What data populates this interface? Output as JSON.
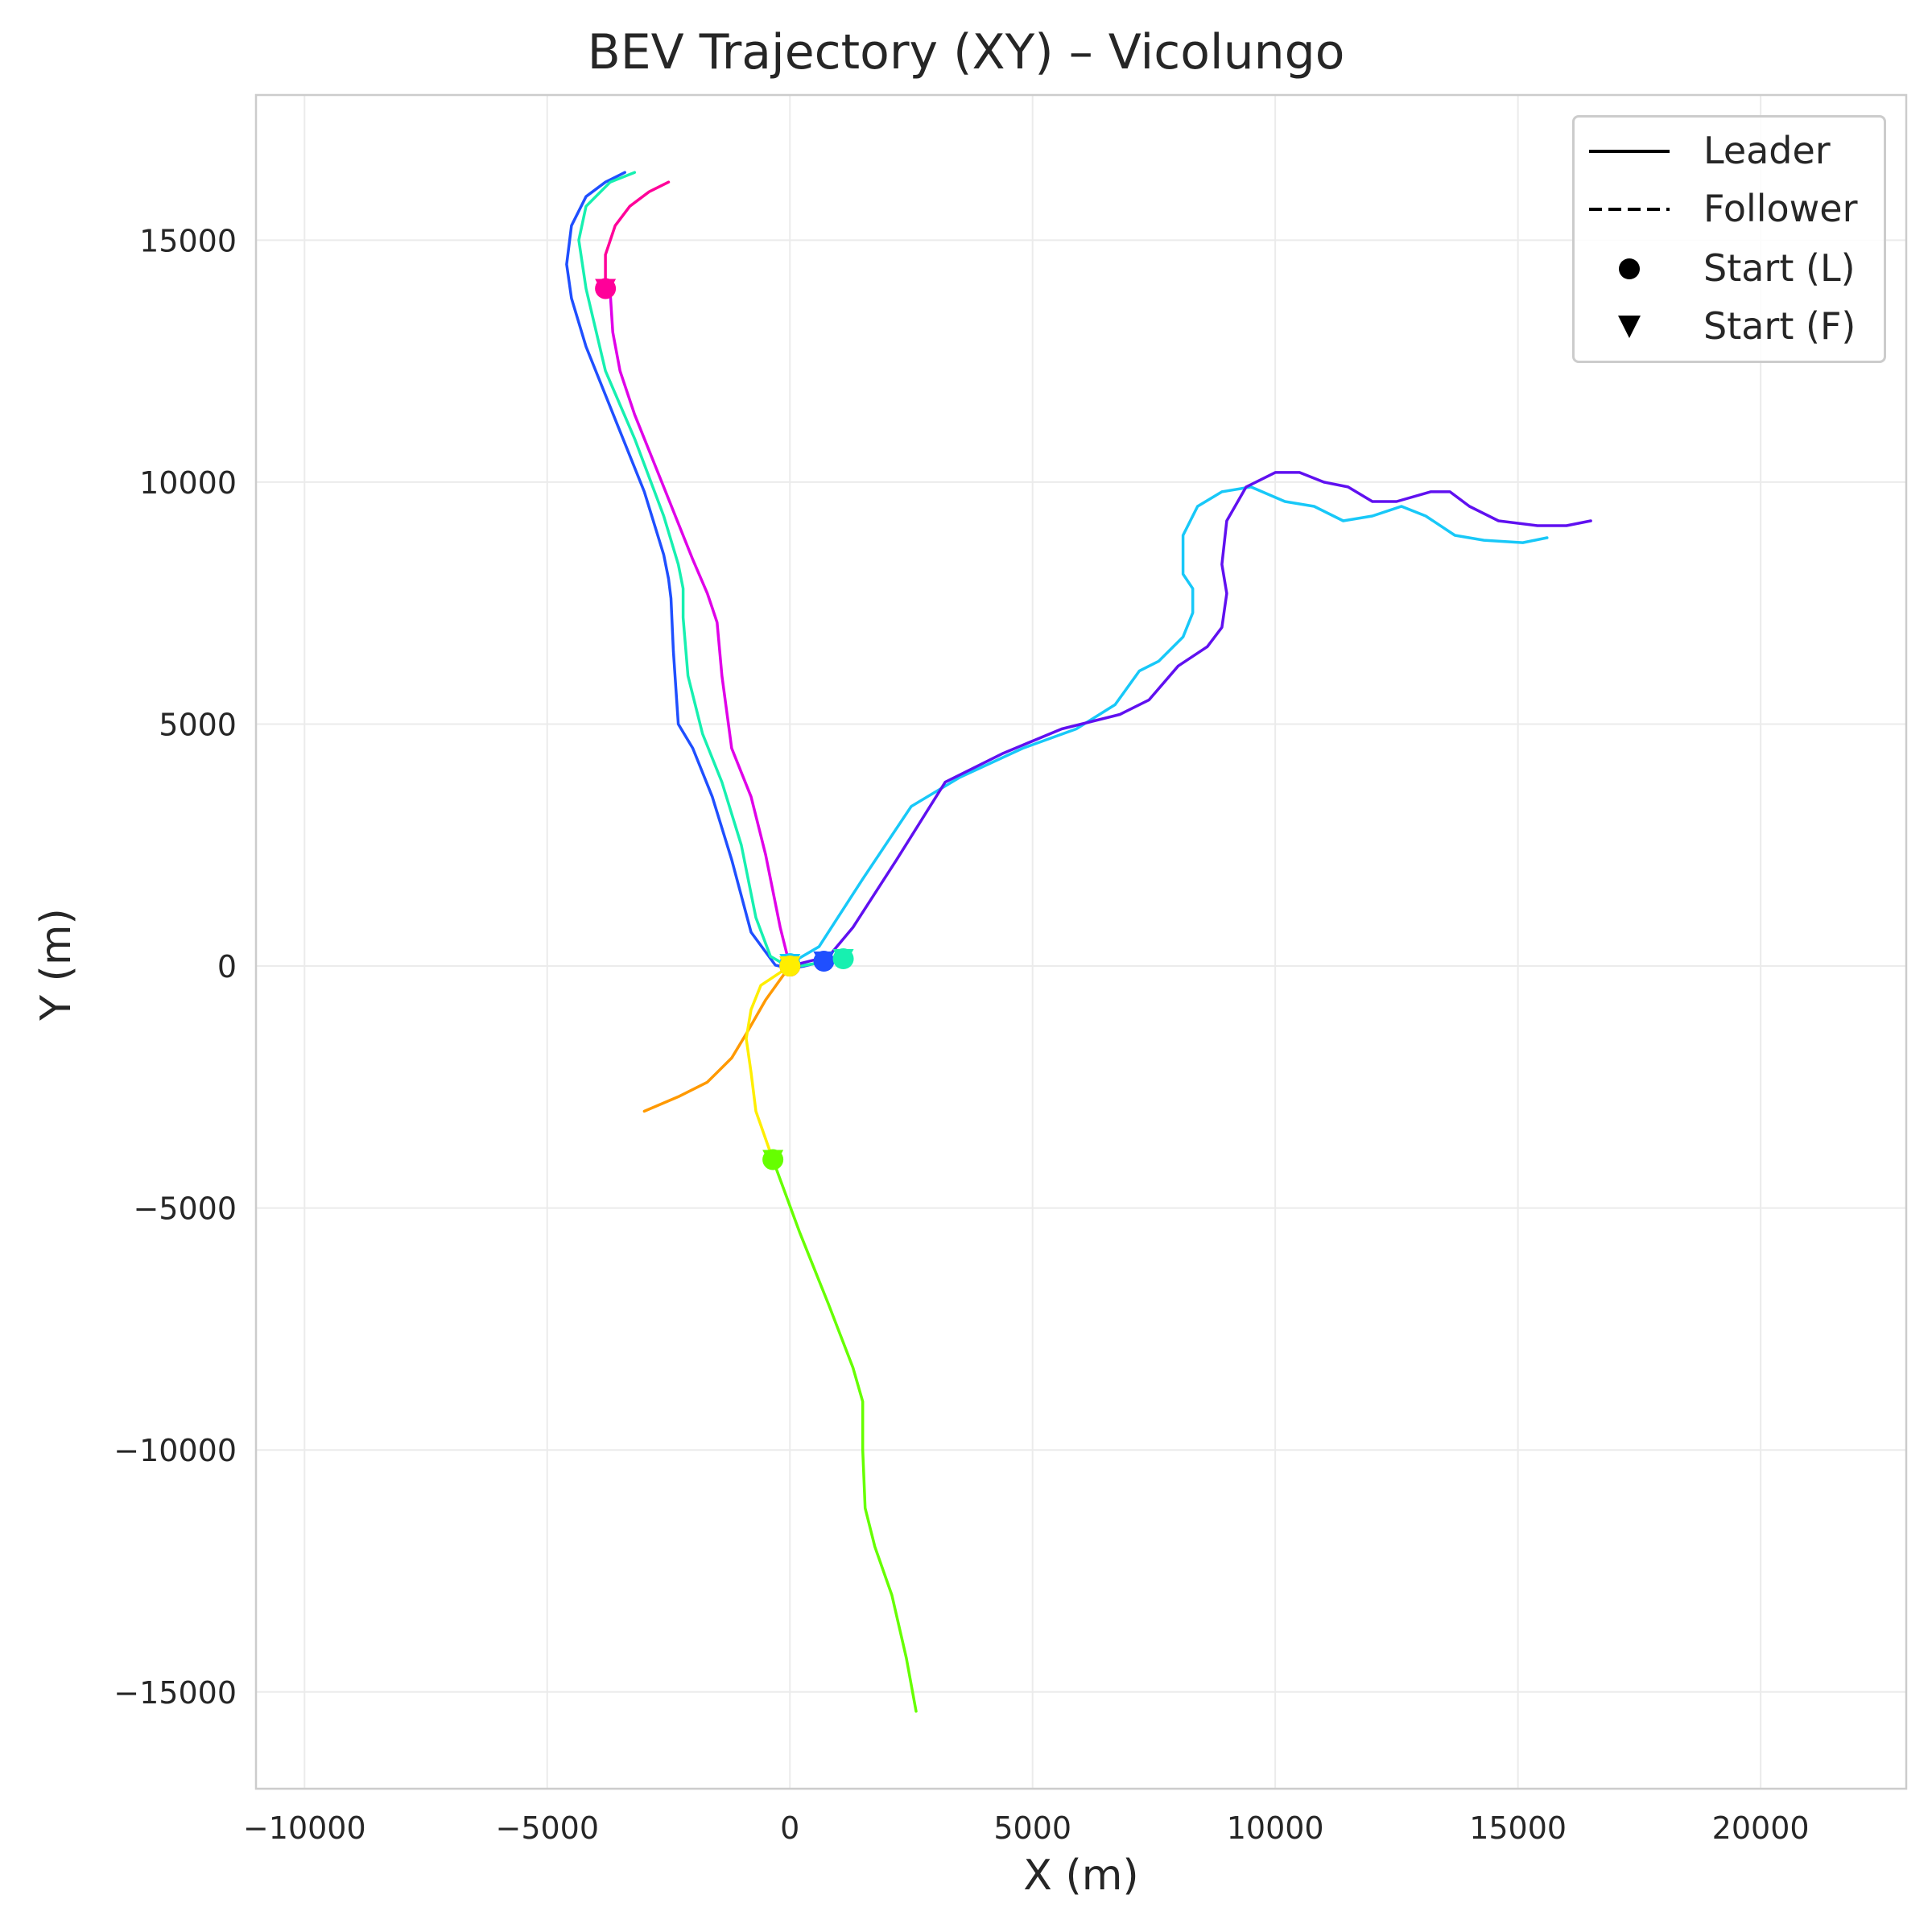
{
  "chart_data": {
    "type": "line",
    "title": "BEV Trajectory (XY) – Vicolungo",
    "xlabel": "X (m)",
    "ylabel": "Y (m)",
    "xlim": [
      -11000,
      23000
    ],
    "ylim": [
      -17000,
      18000
    ],
    "xticks": [
      -10000,
      -5000,
      0,
      5000,
      10000,
      15000,
      20000
    ],
    "yticks": [
      -15000,
      -10000,
      -5000,
      0,
      5000,
      10000,
      15000
    ],
    "xtick_labels": [
      "−10000",
      "−5000",
      "0",
      "5000",
      "10000",
      "15000",
      "20000"
    ],
    "ytick_labels": [
      "−15000",
      "−10000",
      "−5000",
      "0",
      "5000",
      "10000",
      "15000"
    ],
    "grid": true,
    "legend": {
      "placement": "top-right",
      "entries": [
        {
          "label": "Leader",
          "style": "solid-line"
        },
        {
          "label": "Follower",
          "style": "dashed-line"
        },
        {
          "label": "Start (L)",
          "style": "circle"
        },
        {
          "label": "Start (F)",
          "style": "triangle-down"
        }
      ]
    },
    "series": [
      {
        "color": "#1f4fff",
        "start": [
          700,
          100
        ],
        "x": [
          700,
          300,
          0,
          -300,
          -800,
          -1200,
          -1600,
          -2000,
          -2300,
          -2400,
          -2450,
          -2500,
          -2600,
          -3000,
          -3600,
          -4200,
          -4500,
          -4600,
          -4500,
          -4200,
          -3800,
          -3400
        ],
        "y": [
          100,
          0,
          -50,
          20,
          700,
          2200,
          3500,
          4500,
          5000,
          6500,
          7600,
          8000,
          8500,
          9800,
          11300,
          12800,
          13800,
          14500,
          15300,
          15900,
          16200,
          16400
        ]
      },
      {
        "color": "#17f0b0",
        "start": [
          1100,
          150
        ],
        "x": [
          1100,
          500,
          0,
          -400,
          -700,
          -1000,
          -1400,
          -1800,
          -2100,
          -2200,
          -2200,
          -2300,
          -2600,
          -3200,
          -3800,
          -4200,
          -4350,
          -4200,
          -3700,
          -3200
        ],
        "y": [
          150,
          50,
          -30,
          200,
          1000,
          2500,
          3800,
          4800,
          6000,
          7200,
          7800,
          8300,
          9300,
          10900,
          12300,
          14000,
          15000,
          15700,
          16200,
          16400
        ]
      },
      {
        "color": "#e000e8",
        "start": [
          0,
          0
        ],
        "x": [
          0,
          -200,
          -500,
          -800,
          -1200,
          -1400,
          -1500,
          -1600,
          -1700,
          -2000,
          -2600,
          -3200,
          -3500,
          -3650,
          -3700,
          -3800
        ],
        "y": [
          0,
          800,
          2300,
          3500,
          4500,
          6000,
          7100,
          7400,
          7700,
          8400,
          9900,
          11400,
          12300,
          13100,
          13900,
          14000
        ]
      },
      {
        "color": "#ff0099",
        "start": [
          -3800,
          14000
        ],
        "x": [
          -3800,
          -3800,
          -3600,
          -3300,
          -2900,
          -2500
        ],
        "y": [
          14000,
          14700,
          15300,
          15700,
          16000,
          16200
        ]
      },
      {
        "color": "#18c8f8",
        "start": [
          0,
          50
        ],
        "x": [
          0,
          600,
          1500,
          2500,
          3500,
          4800,
          5900,
          6700,
          7200,
          7600,
          8100,
          8300,
          8300,
          8100,
          8100,
          8400,
          8900,
          9500,
          10200,
          10800,
          11400,
          12000,
          12600,
          13100,
          13700,
          14300,
          15100,
          15600
        ],
        "y": [
          50,
          400,
          1800,
          3300,
          3900,
          4500,
          4900,
          5400,
          6100,
          6300,
          6800,
          7300,
          7800,
          8100,
          8900,
          9500,
          9800,
          9900,
          9600,
          9500,
          9200,
          9300,
          9500,
          9300,
          8900,
          8800,
          8750,
          8850
        ]
      },
      {
        "color": "#6010f0",
        "start": [
          0,
          0
        ],
        "x": [
          0,
          800,
          1300,
          2200,
          3200,
          4400,
          5600,
          6800,
          7400,
          8000,
          8600,
          8900,
          9000,
          8900,
          9000,
          9400,
          10000,
          10500,
          11000,
          11500,
          12000,
          12500,
          13200,
          13600,
          14000,
          14600,
          15400,
          16000,
          16500
        ],
        "y": [
          0,
          200,
          800,
          2200,
          3800,
          4400,
          4900,
          5200,
          5500,
          6200,
          6600,
          7000,
          7700,
          8300,
          9200,
          9900,
          10200,
          10200,
          10000,
          9900,
          9600,
          9600,
          9800,
          9800,
          9500,
          9200,
          9100,
          9100,
          9200
        ]
      },
      {
        "color": "#ff9900",
        "start": [
          0,
          0
        ],
        "x": [
          0,
          -500,
          -900,
          -1200,
          -1700,
          -2300,
          -3000
        ],
        "y": [
          0,
          -700,
          -1400,
          -1900,
          -2400,
          -2700,
          -3000
        ]
      },
      {
        "color": "#ffee00",
        "start": [
          0,
          0
        ],
        "x": [
          0,
          -600,
          -800,
          -900,
          -800,
          -700,
          -350
        ],
        "y": [
          0,
          -400,
          -900,
          -1500,
          -2200,
          -3000,
          -4000
        ]
      },
      {
        "color": "#66ff00",
        "start": [
          -350,
          -4000
        ],
        "x": [
          -350,
          200,
          800,
          1300,
          1500,
          1500,
          1550,
          1750,
          2100,
          2400,
          2600
        ],
        "y": [
          -4000,
          -5500,
          -7000,
          -8300,
          -9000,
          -10000,
          -11200,
          -12000,
          -13000,
          -14300,
          -15400
        ]
      }
    ]
  }
}
